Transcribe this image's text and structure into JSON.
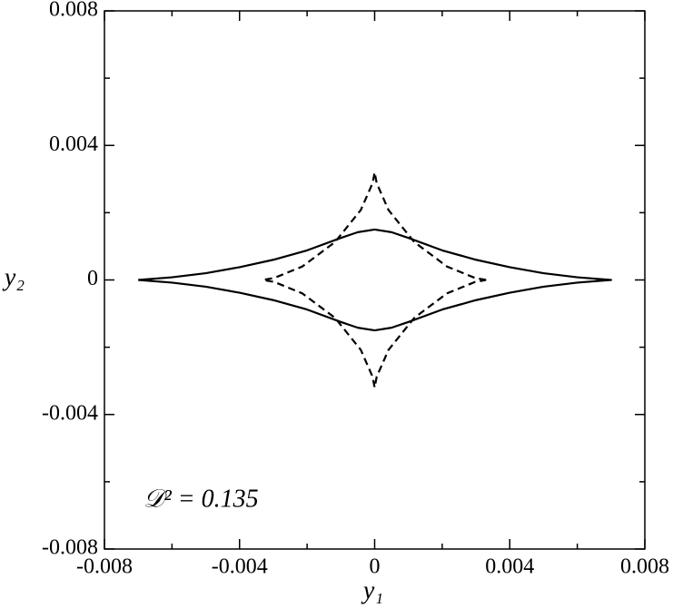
{
  "chart_data": {
    "type": "line",
    "xlabel": "y₁",
    "ylabel": "y₂",
    "annotation": "𝒟² = 0.135",
    "xlim": [
      -0.008,
      0.008
    ],
    "ylim": [
      -0.008,
      0.008
    ],
    "xticks": [
      -0.008,
      -0.004,
      0,
      0.004,
      0.008
    ],
    "yticks": [
      -0.008,
      -0.004,
      0,
      0.004,
      0.008
    ],
    "xminorticks": [
      -0.006,
      -0.002,
      0.002,
      0.006
    ],
    "yminorticks": [
      -0.006,
      -0.002,
      0.002,
      0.006
    ],
    "grid": false,
    "series": [
      {
        "color": "#000000",
        "dash": "solid",
        "x": [
          -0.007,
          -0.006,
          -0.005,
          -0.004,
          -0.003,
          -0.002,
          -0.001,
          -0.0005,
          0,
          0.0005,
          0.001,
          0.002,
          0.003,
          0.004,
          0.005,
          0.006,
          0.007,
          0.006,
          0.005,
          0.004,
          0.003,
          0.002,
          0.001,
          0.0005,
          0,
          -0.0005,
          -0.001,
          -0.002,
          -0.003,
          -0.004,
          -0.005,
          -0.006,
          -0.007
        ],
        "values": [
          0,
          8e-05,
          0.0002,
          0.00038,
          0.0006,
          0.00088,
          0.00125,
          0.00142,
          0.0015,
          0.00142,
          0.00125,
          0.00088,
          0.0006,
          0.00038,
          0.0002,
          8e-05,
          0,
          -8e-05,
          -0.0002,
          -0.00038,
          -0.0006,
          -0.00088,
          -0.00125,
          -0.00142,
          -0.0015,
          -0.00142,
          -0.00125,
          -0.00088,
          -0.0006,
          -0.00038,
          -0.0002,
          -8e-05,
          0
        ]
      },
      {
        "color": "#000000",
        "dash": "dashed",
        "x": [
          0.0033,
          0.00297,
          0.00214,
          0.00117,
          0.00041,
          6e-05,
          0,
          -6e-05,
          -0.00041,
          -0.00117,
          -0.00214,
          -0.00297,
          -0.0033,
          -0.00297,
          -0.00214,
          -0.00117,
          -0.00041,
          -6e-05,
          0,
          6e-05,
          0.00041,
          0.00117,
          0.00214,
          0.00297,
          0.0033
        ],
        "values": [
          0,
          6e-05,
          0.0004,
          0.00113,
          0.00208,
          0.00288,
          0.0032,
          0.00288,
          0.00208,
          0.00113,
          0.0004,
          6e-05,
          0,
          -6e-05,
          -0.0004,
          -0.00113,
          -0.00208,
          -0.00288,
          -0.0032,
          -0.00288,
          -0.00208,
          -0.00113,
          -0.0004,
          -6e-05,
          0
        ]
      }
    ]
  }
}
